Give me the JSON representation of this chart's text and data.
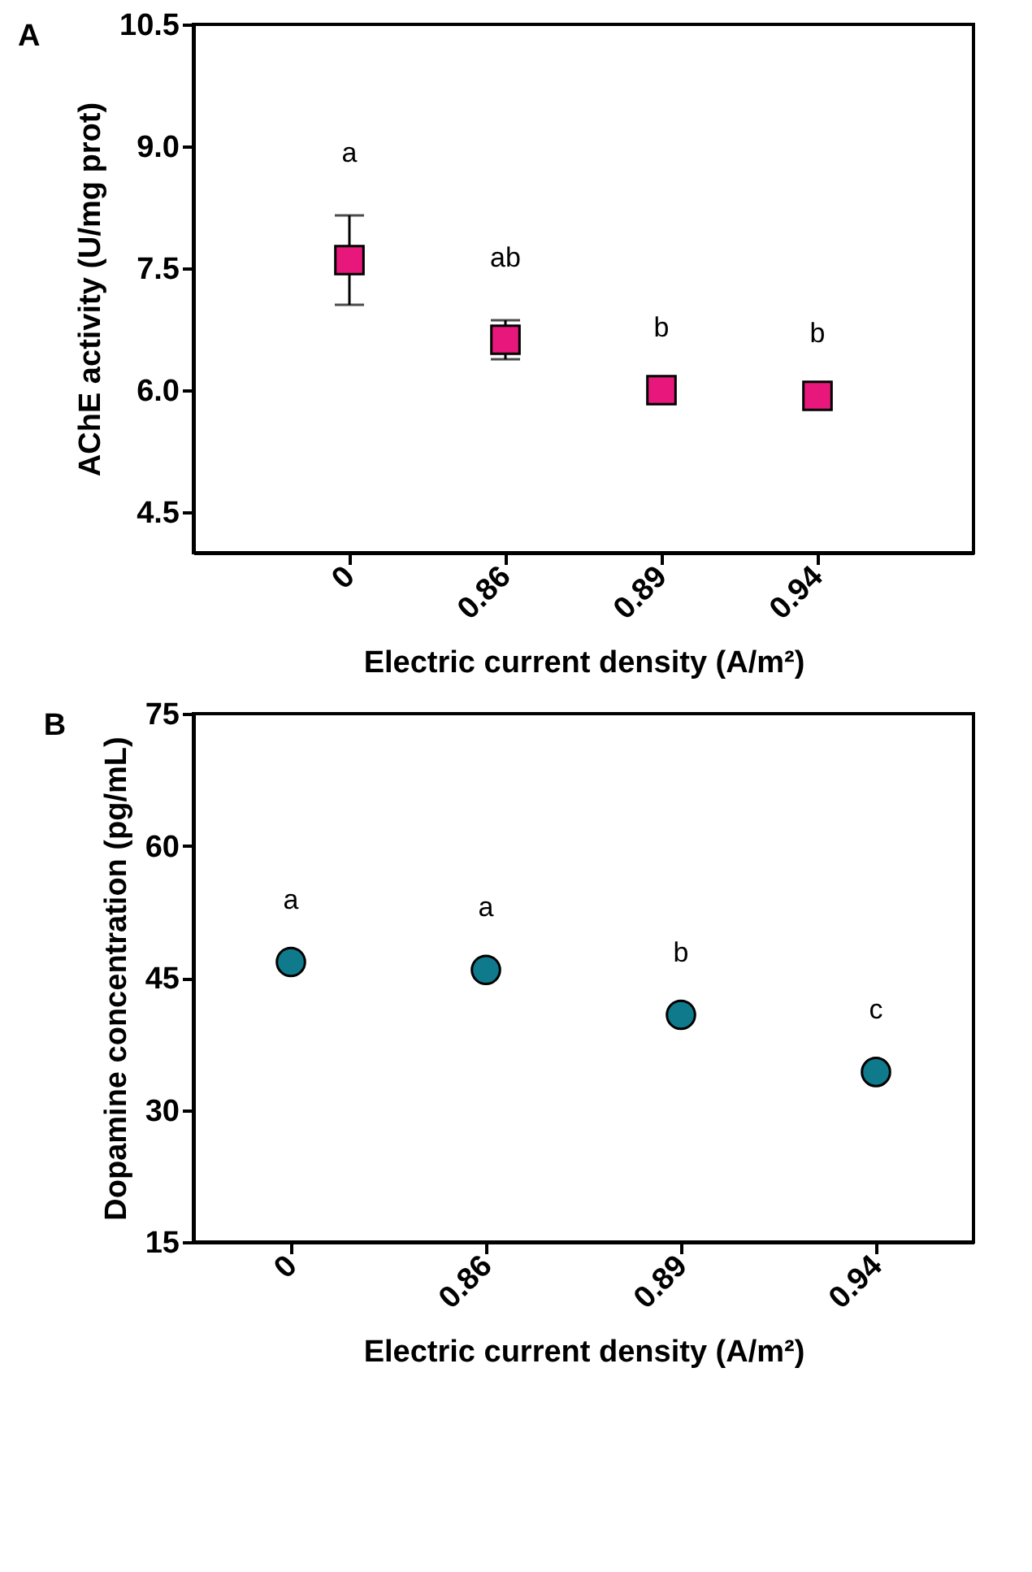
{
  "chart_data": [
    {
      "type": "scatter",
      "title": "A",
      "xlabel": "Electric current density (A/m²)",
      "ylabel": "AChE activity (U/mg prot)",
      "categories": [
        "0",
        "0.86",
        "0.89",
        "0.94"
      ],
      "series": [
        {
          "color": "#e8177b",
          "values": [
            7.6,
            6.62,
            6.0,
            5.93
          ],
          "errors": [
            0.55,
            0.24,
            null,
            null
          ]
        }
      ],
      "ylim": [
        4.0,
        10.5
      ],
      "yticks": [
        {
          "value": 4.5,
          "label": "4.5"
        },
        {
          "value": 6.0,
          "label": "6.0"
        },
        {
          "value": 7.5,
          "label": "7.5"
        },
        {
          "value": 9.0,
          "label": "9.0"
        },
        {
          "value": 10.5,
          "label": "10.5"
        }
      ],
      "marker": "square",
      "grid": false,
      "legend": false,
      "annotations": [
        "a",
        "ab",
        "b",
        "b"
      ]
    },
    {
      "type": "scatter",
      "title": "B",
      "xlabel": "Electric current density (A/m²)",
      "ylabel": "Dopamine concentration (pg/mL)",
      "categories": [
        "0",
        "0.86",
        "0.89",
        "0.94"
      ],
      "series": [
        {
          "color": "#0e7a8c",
          "values": [
            46.8,
            45.9,
            40.8,
            34.3
          ],
          "errors": [
            null,
            null,
            null,
            null
          ]
        }
      ],
      "ylim": [
        15,
        75
      ],
      "yticks": [
        15,
        30,
        45,
        60,
        75
      ],
      "marker": "circle",
      "grid": false,
      "legend": false,
      "annotations": [
        "a",
        "a",
        "b",
        "c"
      ]
    }
  ]
}
